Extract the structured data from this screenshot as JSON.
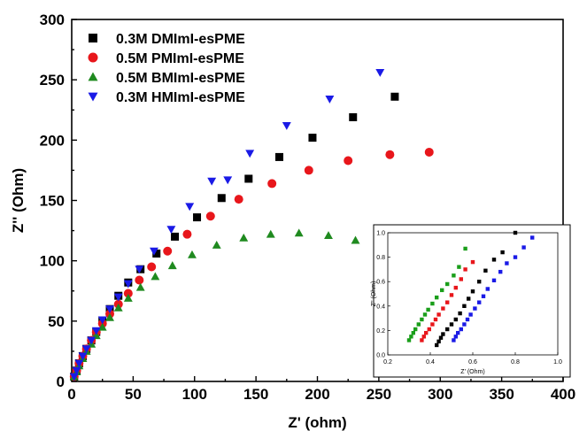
{
  "chart_data": [
    {
      "type": "scatter",
      "title": "",
      "xlabel": "Z' (ohm)",
      "ylabel": "Z'' (Ohm)",
      "xlim": [
        0,
        400
      ],
      "ylim": [
        0,
        300
      ],
      "xticks": [
        "0",
        "50",
        "100",
        "150",
        "200",
        "250",
        "300",
        "350",
        "400"
      ],
      "yticks": [
        "0",
        "50",
        "100",
        "150",
        "200",
        "250",
        "300"
      ],
      "legend_position": "top-left",
      "series": [
        {
          "name": "0.3M DMImI-esPME",
          "marker": "square",
          "color": "#000000",
          "x": [
            2,
            4,
            6,
            9,
            12,
            16,
            20,
            25,
            31,
            38,
            46,
            56,
            69,
            84,
            102,
            122,
            144,
            169,
            196,
            229,
            263
          ],
          "y": [
            4,
            9,
            15,
            21,
            27,
            34,
            41,
            50,
            60,
            71,
            82,
            93,
            106,
            120,
            136,
            152,
            168,
            186,
            202,
            219,
            236
          ]
        },
        {
          "name": "0.5M PMImI-esPME",
          "marker": "circle",
          "color": "#e8161b",
          "x": [
            2,
            4,
            6,
            9,
            12,
            16,
            20,
            25,
            31,
            38,
            46,
            55,
            65,
            78,
            94,
            113,
            136,
            163,
            193,
            225,
            259,
            291
          ],
          "y": [
            4,
            9,
            15,
            21,
            27,
            34,
            41,
            48,
            56,
            64,
            73,
            84,
            95,
            108,
            122,
            137,
            151,
            164,
            175,
            183,
            188,
            190
          ]
        },
        {
          "name": "0.5M BMImI-esPME",
          "marker": "triangle-up",
          "color": "#1f8a1f",
          "x": [
            2,
            4,
            6,
            9,
            12,
            16,
            20,
            25,
            31,
            38,
            46,
            56,
            68,
            82,
            98,
            118,
            140,
            162,
            185,
            209,
            231
          ],
          "y": [
            4,
            8,
            13,
            19,
            25,
            31,
            38,
            45,
            53,
            61,
            69,
            78,
            87,
            96,
            105,
            113,
            119,
            122,
            123,
            121,
            117
          ]
        },
        {
          "name": "0.3M HMImI-esPME",
          "marker": "triangle-down",
          "color": "#1a1ae6",
          "x": [
            2,
            4,
            6,
            9,
            12,
            16,
            20,
            25,
            31,
            38,
            46,
            55,
            67,
            81,
            96,
            114,
            127,
            145,
            175,
            210,
            251
          ],
          "y": [
            4,
            9,
            15,
            21,
            27,
            34,
            42,
            51,
            60,
            70,
            81,
            93,
            108,
            126,
            145,
            166,
            167,
            189,
            212,
            234,
            256
          ]
        }
      ]
    },
    {
      "type": "scatter",
      "title": "",
      "xlabel": "Z' (Ohm)",
      "ylabel": "Z'' (Ohm)",
      "xlim": [
        0.2,
        1.0
      ],
      "ylim": [
        0.0,
        1.0
      ],
      "xticks": [
        "0.2",
        "0.4",
        "0.6",
        "0.8",
        "1.0"
      ],
      "yticks": [
        "0.0",
        "0.2",
        "0.4",
        "0.6",
        "0.8",
        "1.0"
      ],
      "series": [
        {
          "marker": "square",
          "color": "#1a9e1a",
          "x": [
            0.3,
            0.31,
            0.32,
            0.33,
            0.345,
            0.36,
            0.375,
            0.39,
            0.41,
            0.43,
            0.455,
            0.48,
            0.51,
            0.535,
            0.565
          ],
          "y": [
            0.12,
            0.15,
            0.18,
            0.21,
            0.25,
            0.29,
            0.33,
            0.37,
            0.42,
            0.47,
            0.53,
            0.58,
            0.65,
            0.72,
            0.87
          ]
        },
        {
          "marker": "square",
          "color": "#e8161b",
          "x": [
            0.36,
            0.37,
            0.38,
            0.395,
            0.41,
            0.425,
            0.44,
            0.46,
            0.48,
            0.5,
            0.52,
            0.545,
            0.565,
            0.6
          ],
          "y": [
            0.12,
            0.15,
            0.18,
            0.21,
            0.25,
            0.29,
            0.33,
            0.38,
            0.43,
            0.49,
            0.55,
            0.62,
            0.7,
            0.76
          ]
        },
        {
          "marker": "square",
          "color": "#000000",
          "x": [
            0.43,
            0.44,
            0.45,
            0.46,
            0.48,
            0.5,
            0.52,
            0.54,
            0.56,
            0.58,
            0.6,
            0.63,
            0.66,
            0.7,
            0.74,
            0.8
          ],
          "y": [
            0.08,
            0.11,
            0.14,
            0.17,
            0.21,
            0.25,
            0.29,
            0.34,
            0.4,
            0.46,
            0.52,
            0.6,
            0.69,
            0.78,
            0.84,
            1.0
          ]
        },
        {
          "marker": "square",
          "color": "#1a1ae6",
          "x": [
            0.51,
            0.52,
            0.53,
            0.545,
            0.56,
            0.575,
            0.59,
            0.61,
            0.63,
            0.65,
            0.67,
            0.7,
            0.73,
            0.76,
            0.8,
            0.84,
            0.88
          ],
          "y": [
            0.12,
            0.15,
            0.18,
            0.21,
            0.25,
            0.29,
            0.33,
            0.38,
            0.43,
            0.48,
            0.54,
            0.61,
            0.68,
            0.75,
            0.8,
            0.88,
            0.96
          ]
        }
      ]
    }
  ]
}
